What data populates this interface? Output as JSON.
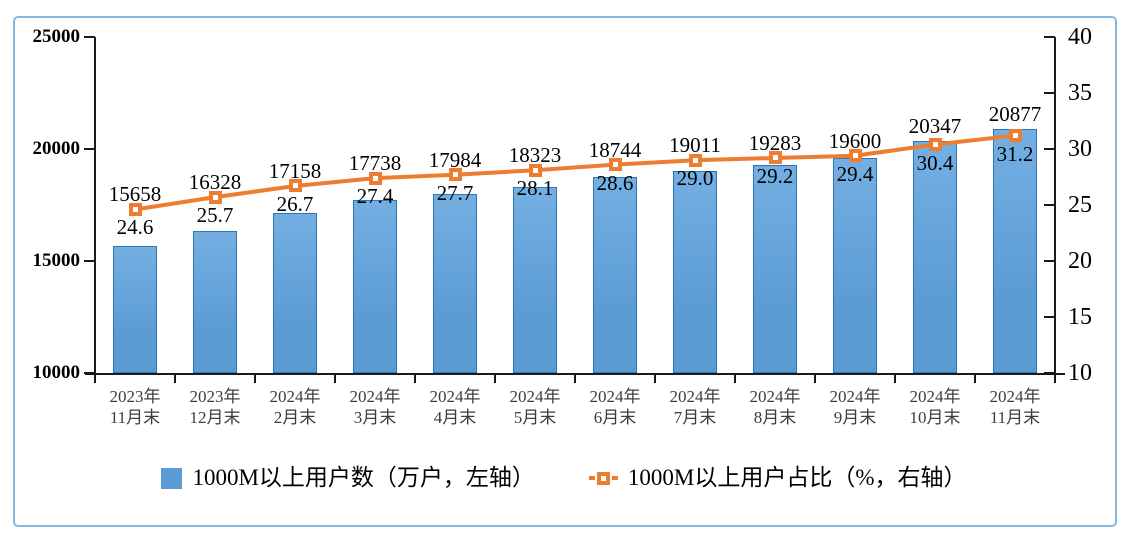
{
  "chart_data": {
    "type": "combo",
    "categories": [
      "2023年\n11月末",
      "2023年\n12月末",
      "2024年\n2月末",
      "2024年\n3月末",
      "2024年\n4月末",
      "2024年\n5月末",
      "2024年\n6月末",
      "2024年\n7月末",
      "2024年\n8月末",
      "2024年\n9月末",
      "2024年\n10月末",
      "2024年\n11月末"
    ],
    "series": [
      {
        "name": "1000M以上用户数（万户，左轴）",
        "type": "bar",
        "axis": "left",
        "values": [
          15658,
          16328,
          17158,
          17738,
          17984,
          18323,
          18744,
          19011,
          19283,
          19600,
          20347,
          20877
        ]
      },
      {
        "name": "1000M以上用户占比（%，右轴）",
        "type": "line",
        "axis": "right",
        "values": [
          "24.6",
          "25.7",
          "26.7",
          "27.4",
          "27.7",
          "28.1",
          "28.6",
          "29.0",
          "29.2",
          "29.4",
          "30.4",
          "31.2"
        ]
      }
    ],
    "axes": {
      "left": {
        "min": 10000,
        "max": 25000,
        "ticks": [
          25000,
          20000,
          15000,
          10000
        ]
      },
      "right": {
        "min": 10,
        "max": 40,
        "ticks": [
          40,
          35,
          30,
          25,
          20,
          15,
          10
        ]
      }
    },
    "legend": [
      {
        "marker": "bar-swatch",
        "label": "1000M以上用户数（万户，左轴）"
      },
      {
        "marker": "line-swatch",
        "label": "1000M以上用户占比（%，右轴）"
      }
    ],
    "grid": false,
    "legend_position": "bottom",
    "colors": {
      "bar_fill": "#5B9BD5",
      "bar_border": "#2E75B6",
      "line": "#ED7D31",
      "frame_border": "#84B8E0",
      "axis": "#1A1A1A"
    }
  }
}
